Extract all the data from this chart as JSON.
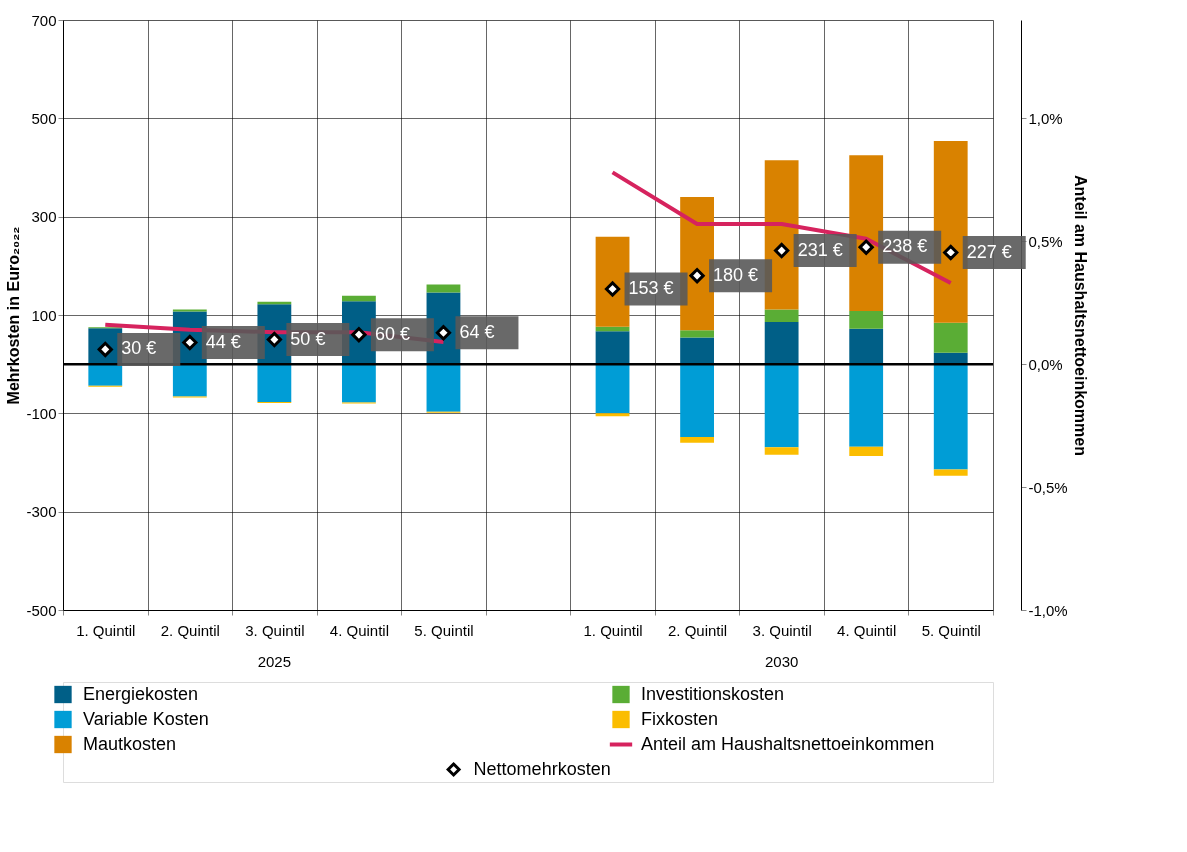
{
  "chart_data": {
    "type": "bar",
    "stacked": true,
    "categories": [
      "1. Quintil",
      "2. Quintil",
      "3. Quintil",
      "4. Quintil",
      "5. Quintil",
      null,
      "1. Quintil",
      "2. Quintil",
      "3. Quintil",
      "4. Quintil",
      "5. Quintil"
    ],
    "series": [
      {
        "name": "Energiekosten",
        "color": "#005f87",
        "values": [
          73,
          107,
          122,
          128,
          146,
          null,
          67,
          54,
          86,
          72,
          23
        ]
      },
      {
        "name": "Investitionskosten",
        "color": "#5aad35",
        "values": [
          2,
          4,
          5,
          11,
          16,
          null,
          9,
          15,
          25,
          36,
          61
        ]
      },
      {
        "name": "Variable Kosten",
        "color": "#009dd6",
        "values": [
          -44,
          -66,
          -77,
          -78,
          -97,
          null,
          -100,
          -148,
          -169,
          -168,
          -214
        ]
      },
      {
        "name": "Fixkosten",
        "color": "#fbbd00",
        "values": [
          -2,
          -2,
          -2,
          -2,
          -2,
          null,
          -6,
          -12,
          -15,
          -19,
          -13
        ]
      },
      {
        "name": "Mautkosten",
        "color": "#d98200",
        "values": [
          null,
          null,
          null,
          null,
          null,
          null,
          183,
          271,
          304,
          317,
          370
        ]
      },
      {
        "name": "Anteil am Haushaltsnettoeinkommen",
        "type": "line",
        "axis": "y2",
        "color": "#d6235e",
        "values": [
          0.16,
          0.14,
          0.13,
          0.13,
          0.09,
          null,
          0.78,
          0.57,
          0.57,
          0.51,
          0.33
        ]
      },
      {
        "name": "Nettomehrkosten",
        "type": "scatter",
        "marker": "diamond",
        "color": "#000000",
        "values": [
          30,
          44,
          50,
          60,
          64,
          null,
          153,
          180,
          231,
          238,
          227
        ],
        "value_labels": [
          "30 €",
          "44 €",
          "50 €",
          "60 €",
          "64 €",
          null,
          "153 €",
          "180 €",
          "231 €",
          "238 €",
          "227 €"
        ]
      }
    ],
    "ylabel": "Mehrkosten in Euro₂₀₂₂",
    "y2label": "Anteil am Haushaltsnettoeinkommen",
    "ylim": [
      -500,
      700
    ],
    "yticks": [
      -500,
      -300,
      -100,
      100,
      300,
      500,
      700
    ],
    "y2lim": [
      -1.0,
      1.4
    ],
    "y2ticks": [
      {
        "value": -1.0,
        "label": "-1,0%"
      },
      {
        "value": -0.5,
        "label": "-0,5%"
      },
      {
        "value": 0,
        "label": "0,0%"
      },
      {
        "value": 0.5,
        "label": "0,5%"
      },
      {
        "value": 1.0,
        "label": "1,0%"
      }
    ],
    "ref_lines": [
      {
        "axis": "y",
        "value": 0,
        "color": "#000000"
      }
    ],
    "annotations": [
      "2025",
      "2030"
    ],
    "grid": true,
    "legend": "bottom"
  }
}
